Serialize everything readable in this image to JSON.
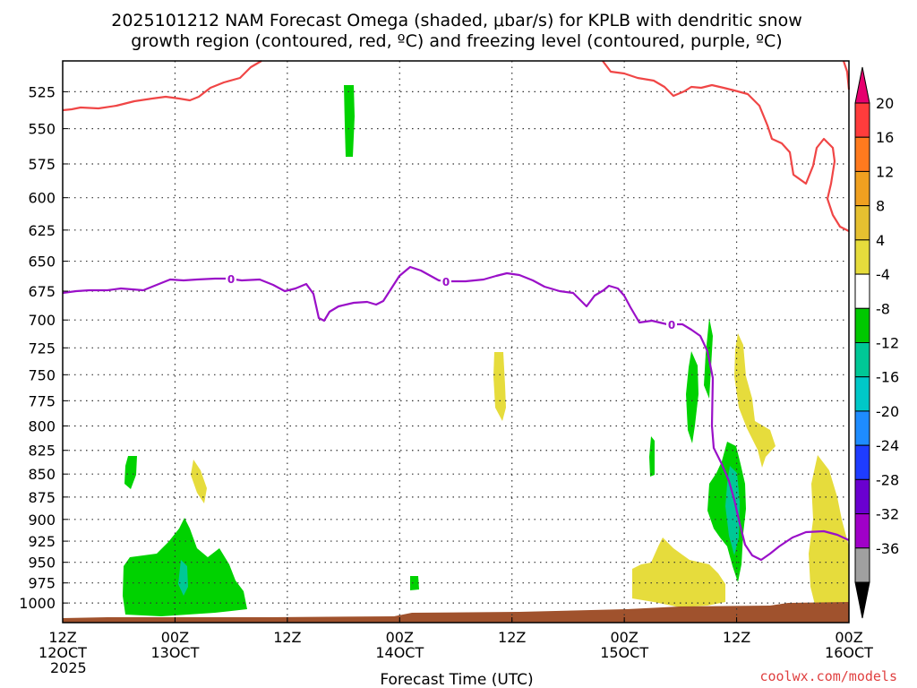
{
  "chart_data": {
    "type": "heatmap",
    "title_line1": "2025101212 NAM Forecast Omega (shaded, μbar/s) for KPLB with dendritic snow",
    "title_line2": "growth region (contoured, red, ºC) and freezing level (contoured, purple, ºC)",
    "xlabel": "Forecast Time (UTC)",
    "y_axis": {
      "label": "",
      "ticks": [
        525,
        550,
        575,
        600,
        625,
        650,
        675,
        700,
        725,
        750,
        775,
        800,
        825,
        850,
        875,
        900,
        925,
        950,
        975,
        1000
      ],
      "range": [
        1025,
        505
      ],
      "scale": "log-pressure"
    },
    "x_axis": {
      "range_hours": [
        0,
        84
      ],
      "ticks": [
        {
          "hour": 0,
          "line1": "12Z",
          "line2": "12OCT",
          "line3": "2025"
        },
        {
          "hour": 12,
          "line1": "00Z",
          "line2": "13OCT",
          "line3": ""
        },
        {
          "hour": 24,
          "line1": "12Z",
          "line2": "",
          "line3": ""
        },
        {
          "hour": 36,
          "line1": "00Z",
          "line2": "14OCT",
          "line3": ""
        },
        {
          "hour": 48,
          "line1": "12Z",
          "line2": "",
          "line3": ""
        },
        {
          "hour": 60,
          "line1": "00Z",
          "line2": "15OCT",
          "line3": ""
        },
        {
          "hour": 72,
          "line1": "12Z",
          "line2": "",
          "line3": ""
        },
        {
          "hour": 84,
          "line1": "00Z",
          "line2": "16OCT",
          "line3": ""
        }
      ]
    },
    "colorbar": {
      "labels": [
        "20",
        "16",
        "12",
        "8",
        "4",
        "-4",
        "-8",
        "-12",
        "-16",
        "-20",
        "-24",
        "-28",
        "-32",
        "-36"
      ],
      "colors": [
        "#ff3c3c",
        "#ff7a1e",
        "#f0a020",
        "#e6c030",
        "#e6dc3c",
        "#ffffff",
        "#00c800",
        "#00c896",
        "#00c8c8",
        "#1e8cff",
        "#1e3cff",
        "#6a00d0",
        "#a000c8",
        "#a0a0a0"
      ],
      "top_arrow_color": "#e6006e",
      "bottom_arrow_color": "#000000"
    },
    "freezing_level_label": "0",
    "credit": "coolwx.com/models"
  }
}
